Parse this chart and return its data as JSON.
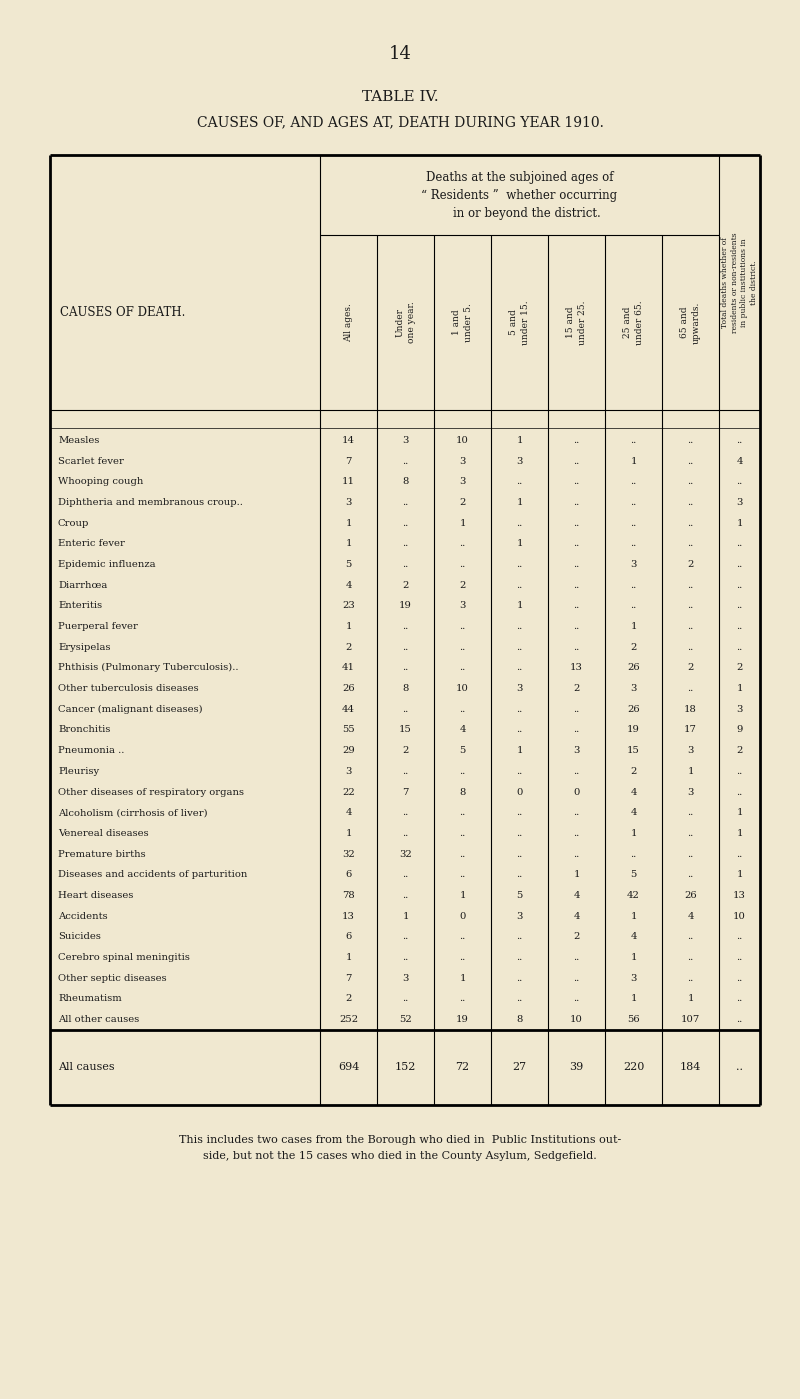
{
  "page_number": "14",
  "table_title": "TABLE IV.",
  "table_subtitle": "CAUSES OF, AND AGES AT, DEATH DURING YEAR 1910.",
  "bg_color": "#f0e8d0",
  "text_color": "#1a1a1a",
  "col_headers_rotated": [
    "All ages.",
    "Under\none year.",
    "1 and\nunder 5.",
    "5 and\nunder 15.",
    "15 and\nunder 25.",
    "25 and\nunder 65.",
    "65 and\nupwards."
  ],
  "last_col_header": "Total deaths whether of\nresidents or non-residents\nin public institutions in\nthe district.",
  "header_group_text": "Deaths at the subjoined ages of\n“ Residents ”  whether occurring\n    in or beyond the district.",
  "row_header": "CAUSES OF DEATH.",
  "footer_text": "This includes two cases from the Borough who died in  Public Institutions out-\nside, but not the 15 cases who died in the County Asylum, Sedgefield.",
  "rows": [
    [
      "Measles",
      "14",
      "3",
      "10",
      "1",
      "..",
      "..",
      "..",
      ".."
    ],
    [
      "Scarlet fever",
      "7",
      "..",
      "3",
      "3",
      "..",
      "1",
      "..",
      "4"
    ],
    [
      "Whooping cough",
      "11",
      "8",
      "3",
      "..",
      "..",
      "..",
      "..",
      ".."
    ],
    [
      "Diphtheria and membranous croup..",
      "3",
      "..",
      "2",
      "1",
      "..",
      "..",
      "..",
      "3"
    ],
    [
      "Croup",
      "1",
      "..",
      "1",
      "..",
      "..",
      "..",
      "..",
      "1"
    ],
    [
      "Enteric fever",
      "1",
      "..",
      "..",
      "1",
      "..",
      "..",
      "..",
      ".."
    ],
    [
      "Epidemic influenza",
      "5",
      "..",
      "..",
      "..",
      "..",
      "3",
      "2",
      ".."
    ],
    [
      "Diarrhœa",
      "4",
      "2",
      "2",
      "..",
      "..",
      "..",
      "..",
      ".."
    ],
    [
      "Enteritis",
      "23",
      "19",
      "3",
      "1",
      "..",
      "..",
      "..",
      ".."
    ],
    [
      "Puerperal fever",
      "1",
      "..",
      "..",
      "..",
      "..",
      "1",
      "..",
      ".."
    ],
    [
      "Erysipelas",
      "2",
      "..",
      "..",
      "..",
      "..",
      "2",
      "..",
      ".."
    ],
    [
      "Phthisis (Pulmonary Tuberculosis)..",
      "41",
      "..",
      "..",
      "..",
      "13",
      "26",
      "2",
      "2"
    ],
    [
      "Other tuberculosis diseases",
      "26",
      "8",
      "10",
      "3",
      "2",
      "3",
      "..",
      "1"
    ],
    [
      "Cancer (malignant diseases)",
      "44",
      "..",
      "..",
      "..",
      "..",
      "26",
      "18",
      "3"
    ],
    [
      "Bronchitis",
      "55",
      "15",
      "4",
      "..",
      "..",
      "19",
      "17",
      "9"
    ],
    [
      "Pneumonia ..",
      "29",
      "2",
      "5",
      "1",
      "3",
      "15",
      "3",
      "2"
    ],
    [
      "Pleurisy",
      "3",
      "..",
      "..",
      "..",
      "..",
      "2",
      "1",
      ".."
    ],
    [
      "Other diseases of respiratory organs",
      "22",
      "7",
      "8",
      "0",
      "0",
      "4",
      "3",
      ".."
    ],
    [
      "Alcoholism (cirrhosis of liver)",
      "4",
      "..",
      "..",
      "..",
      "..",
      "4",
      "..",
      "1"
    ],
    [
      "Venereal diseases",
      "1",
      "..",
      "..",
      "..",
      "..",
      "1",
      "..",
      "1"
    ],
    [
      "Premature births",
      "32",
      "32",
      "..",
      "..",
      "..",
      "..",
      "..",
      ".."
    ],
    [
      "Diseases and accidents of parturition",
      "6",
      "..",
      "..",
      "..",
      "1",
      "5",
      "..",
      "1"
    ],
    [
      "Heart diseases",
      "78",
      "..",
      "1",
      "5",
      "4",
      "42",
      "26",
      "13"
    ],
    [
      "Accidents",
      "13",
      "1",
      "0",
      "3",
      "4",
      "1",
      "4",
      "10"
    ],
    [
      "Suicides",
      "6",
      "..",
      "..",
      "..",
      "2",
      "4",
      "..",
      ".."
    ],
    [
      "Cerebro spinal meningitis",
      "1",
      "..",
      "..",
      "..",
      "..",
      "1",
      "..",
      ".."
    ],
    [
      "Other septic diseases",
      "7",
      "3",
      "1",
      "..",
      "..",
      "3",
      "..",
      ".."
    ],
    [
      "Rheumatism",
      "2",
      "..",
      "..",
      "..",
      "..",
      "1",
      "1",
      ".."
    ],
    [
      "All other causes",
      "252",
      "52",
      "19",
      "8",
      "10",
      "56",
      "107",
      ".."
    ]
  ],
  "totals_row": [
    "All causes",
    "694",
    "152",
    "72",
    "27",
    "39",
    "220",
    "184",
    ".."
  ]
}
